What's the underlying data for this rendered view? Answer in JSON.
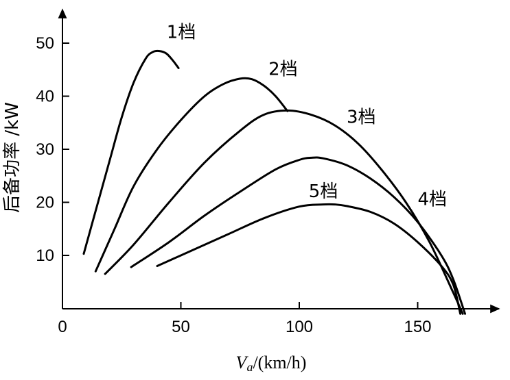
{
  "chart_data": {
    "type": "line",
    "xlabel_main": "V",
    "xlabel_sub": "a",
    "xlabel_unit": "/(km/h)",
    "ylabel": "后备功率 /kW",
    "xlim": [
      0,
      180
    ],
    "ylim": [
      0,
      55
    ],
    "x_ticks": [
      0,
      50,
      100,
      150
    ],
    "y_ticks": [
      10,
      20,
      30,
      40,
      50
    ],
    "x_tick_labels": [
      "0",
      "50",
      "100",
      "150"
    ],
    "y_tick_labels": [
      "10",
      "20",
      "30",
      "40",
      "50"
    ],
    "grid": false,
    "series": [
      {
        "name": "1档",
        "x": [
          9,
          15,
          20,
          25,
          30,
          35,
          38,
          41,
          44,
          47,
          49
        ],
        "y": [
          10.3,
          20,
          28,
          36,
          42.5,
          47,
          48.3,
          48.5,
          48,
          46.5,
          45.3
        ]
      },
      {
        "name": "2档",
        "x": [
          14,
          22,
          30,
          40,
          50,
          60,
          68,
          75,
          80,
          85,
          90,
          95
        ],
        "y": [
          7,
          15,
          23,
          30,
          35.5,
          40,
          42.3,
          43.3,
          43.2,
          42,
          40,
          37.2
        ]
      },
      {
        "name": "3档",
        "x": [
          18,
          30,
          45,
          60,
          75,
          85,
          95,
          105,
          115,
          125,
          135,
          145,
          155,
          165,
          169
        ],
        "y": [
          6.5,
          12,
          20,
          27.5,
          33.5,
          36.5,
          37.3,
          36.5,
          34.5,
          31,
          26,
          20,
          12.5,
          3,
          -1
        ]
      },
      {
        "name": "4档",
        "x": [
          29,
          45,
          60,
          75,
          90,
          100,
          105,
          110,
          120,
          130,
          140,
          150,
          160,
          165,
          170
        ],
        "y": [
          7.8,
          12.5,
          17.5,
          22,
          26.2,
          28,
          28.4,
          28.3,
          27,
          24.5,
          21,
          16.3,
          10,
          5.5,
          -1
        ]
      },
      {
        "name": "5档",
        "x": [
          40,
          55,
          70,
          85,
          100,
          110,
          115,
          120,
          130,
          140,
          150,
          160,
          165,
          168
        ],
        "y": [
          8,
          11,
          14,
          17,
          19.2,
          19.6,
          19.6,
          19.3,
          18.2,
          16,
          12.5,
          8,
          4.5,
          -1
        ]
      }
    ],
    "series_labels": [
      {
        "text": "1档",
        "at_x": 44,
        "at_y": 51
      },
      {
        "text": "2档",
        "at_x": 87,
        "at_y": 44
      },
      {
        "text": "3档",
        "at_x": 120,
        "at_y": 35
      },
      {
        "text": "4档",
        "at_x": 150,
        "at_y": 19.5
      },
      {
        "text": "5档",
        "at_x": 104,
        "at_y": 21
      }
    ]
  }
}
